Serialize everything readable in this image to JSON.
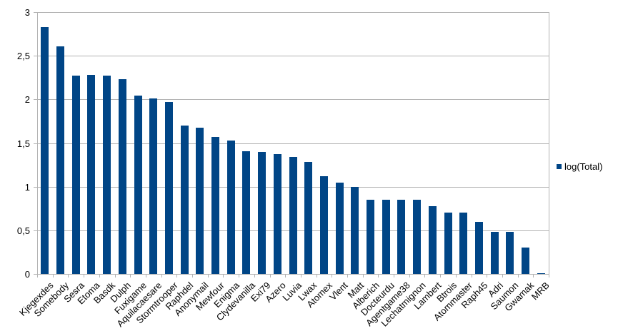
{
  "chart_data": {
    "type": "bar",
    "title": "",
    "series_name": "log(Total)",
    "categories": [
      "Kjegexdes",
      "Somebody",
      "Sesra",
      "Etoma",
      "Basdk",
      "Dulph",
      "Fuxigame",
      "Aquilacaesare",
      "Stormtrooper",
      "Raphdel",
      "Anonymail",
      "Mewfour",
      "Enigma",
      "Clydevanilla",
      "Exi79",
      "Azero",
      "Luvia",
      "Lwax",
      "Atomex",
      "Vlent",
      "Matt",
      "Alberich",
      "Docteurdu",
      "Agentgame38",
      "Lechatmignon",
      "Lambert",
      "Btrois",
      "Atommaster",
      "Raph45",
      "Adri",
      "Saumon",
      "Gwamak",
      "MRB"
    ],
    "values": [
      2.83,
      2.61,
      2.27,
      2.28,
      2.27,
      2.23,
      2.04,
      2.01,
      1.97,
      1.7,
      1.68,
      1.57,
      1.53,
      1.41,
      1.4,
      1.37,
      1.34,
      1.28,
      1.12,
      1.05,
      1.0,
      0.85,
      0.85,
      0.85,
      0.85,
      0.78,
      0.7,
      0.7,
      0.6,
      0.48,
      0.48,
      0.3,
      0.01
    ],
    "xlabel": "",
    "ylabel": "",
    "ylim": [
      0,
      3
    ],
    "ytick_values": [
      0,
      0.5,
      1,
      1.5,
      2,
      2.5,
      3
    ],
    "ytick_labels": [
      "0",
      "0,5",
      "1",
      "1,5",
      "2",
      "2,5",
      "3"
    ],
    "grid": true,
    "legend_position": "right",
    "colors": {
      "bar": "#004586",
      "grid": "#b3b3b3",
      "axis": "#b3b3b3",
      "text": "#000000",
      "background": "#ffffff"
    }
  },
  "legend": {
    "label": "log(Total)",
    "swatch_color": "#004586"
  }
}
